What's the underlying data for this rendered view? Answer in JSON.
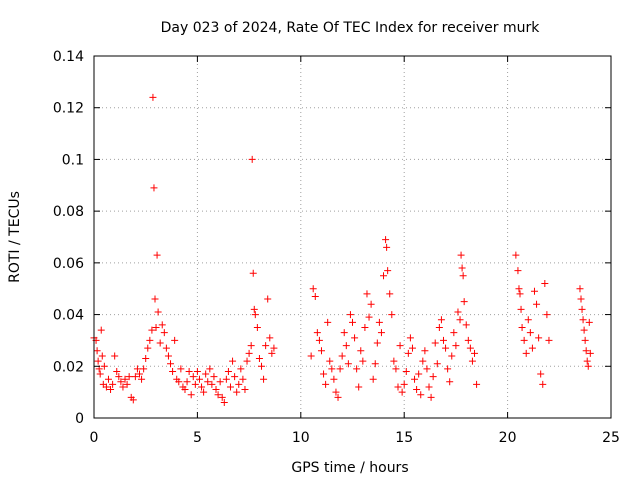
{
  "chart_data": {
    "type": "scatter",
    "title": "Day 023 of 2024, Rate Of TEC Index for receiver murk",
    "xlabel": "GPS time / hours",
    "ylabel": "ROTI / TECUs",
    "xlim": [
      0,
      25
    ],
    "ylim": [
      0,
      0.14
    ],
    "x_ticks": [
      0,
      5,
      10,
      15,
      20,
      25
    ],
    "y_ticks": [
      0,
      0.02,
      0.04,
      0.06,
      0.08,
      0.1,
      0.12,
      0.14
    ],
    "x_tick_labels": [
      "0",
      "5",
      "10",
      "15",
      "20",
      "25"
    ],
    "y_tick_labels": [
      "0",
      "0.02",
      "0.04",
      "0.06",
      "0.08",
      "0.1",
      "0.12",
      "0.14"
    ],
    "grid": true,
    "marker": "+",
    "color": "#ff0000",
    "points": [
      [
        0.0,
        0.031
      ],
      [
        0.1,
        0.03
      ],
      [
        0.15,
        0.026
      ],
      [
        0.2,
        0.022
      ],
      [
        0.25,
        0.019
      ],
      [
        0.3,
        0.017
      ],
      [
        0.35,
        0.034
      ],
      [
        0.4,
        0.024
      ],
      [
        0.45,
        0.013
      ],
      [
        0.5,
        0.02
      ],
      [
        0.6,
        0.012
      ],
      [
        0.7,
        0.015
      ],
      [
        0.8,
        0.011
      ],
      [
        0.9,
        0.013
      ],
      [
        1.0,
        0.024
      ],
      [
        1.1,
        0.018
      ],
      [
        1.2,
        0.016
      ],
      [
        1.3,
        0.014
      ],
      [
        1.4,
        0.012
      ],
      [
        1.5,
        0.015
      ],
      [
        1.6,
        0.013
      ],
      [
        1.7,
        0.016
      ],
      [
        1.8,
        0.008
      ],
      [
        1.9,
        0.007
      ],
      [
        2.0,
        0.016
      ],
      [
        2.1,
        0.019
      ],
      [
        2.2,
        0.017
      ],
      [
        2.3,
        0.015
      ],
      [
        2.4,
        0.019
      ],
      [
        2.5,
        0.023
      ],
      [
        2.6,
        0.027
      ],
      [
        2.7,
        0.03
      ],
      [
        2.8,
        0.034
      ],
      [
        2.85,
        0.124
      ],
      [
        2.9,
        0.089
      ],
      [
        2.95,
        0.046
      ],
      [
        3.0,
        0.035
      ],
      [
        3.05,
        0.063
      ],
      [
        3.1,
        0.041
      ],
      [
        3.2,
        0.029
      ],
      [
        3.3,
        0.036
      ],
      [
        3.4,
        0.033
      ],
      [
        3.5,
        0.027
      ],
      [
        3.6,
        0.024
      ],
      [
        3.7,
        0.021
      ],
      [
        3.8,
        0.018
      ],
      [
        3.9,
        0.03
      ],
      [
        4.0,
        0.015
      ],
      [
        4.1,
        0.014
      ],
      [
        4.2,
        0.019
      ],
      [
        4.3,
        0.012
      ],
      [
        4.4,
        0.011
      ],
      [
        4.5,
        0.014
      ],
      [
        4.6,
        0.018
      ],
      [
        4.7,
        0.009
      ],
      [
        4.8,
        0.016
      ],
      [
        4.9,
        0.013
      ],
      [
        5.0,
        0.018
      ],
      [
        5.1,
        0.015
      ],
      [
        5.2,
        0.012
      ],
      [
        5.3,
        0.01
      ],
      [
        5.4,
        0.017
      ],
      [
        5.5,
        0.014
      ],
      [
        5.6,
        0.019
      ],
      [
        5.7,
        0.013
      ],
      [
        5.8,
        0.016
      ],
      [
        5.9,
        0.011
      ],
      [
        6.0,
        0.009
      ],
      [
        6.1,
        0.014
      ],
      [
        6.2,
        0.008
      ],
      [
        6.3,
        0.006
      ],
      [
        6.4,
        0.015
      ],
      [
        6.5,
        0.018
      ],
      [
        6.6,
        0.012
      ],
      [
        6.7,
        0.022
      ],
      [
        6.8,
        0.016
      ],
      [
        6.9,
        0.01
      ],
      [
        7.0,
        0.013
      ],
      [
        7.1,
        0.019
      ],
      [
        7.2,
        0.015
      ],
      [
        7.3,
        0.011
      ],
      [
        7.4,
        0.022
      ],
      [
        7.5,
        0.025
      ],
      [
        7.6,
        0.028
      ],
      [
        7.65,
        0.1
      ],
      [
        7.7,
        0.056
      ],
      [
        7.75,
        0.042
      ],
      [
        7.8,
        0.04
      ],
      [
        7.9,
        0.035
      ],
      [
        8.0,
        0.023
      ],
      [
        8.1,
        0.02
      ],
      [
        8.2,
        0.015
      ],
      [
        8.3,
        0.028
      ],
      [
        8.4,
        0.046
      ],
      [
        8.5,
        0.031
      ],
      [
        8.6,
        0.025
      ],
      [
        8.7,
        0.027
      ],
      [
        10.5,
        0.024
      ],
      [
        10.6,
        0.05
      ],
      [
        10.7,
        0.047
      ],
      [
        10.8,
        0.033
      ],
      [
        10.9,
        0.03
      ],
      [
        11.0,
        0.026
      ],
      [
        11.1,
        0.017
      ],
      [
        11.2,
        0.013
      ],
      [
        11.3,
        0.037
      ],
      [
        11.4,
        0.022
      ],
      [
        11.5,
        0.019
      ],
      [
        11.6,
        0.015
      ],
      [
        11.7,
        0.01
      ],
      [
        11.8,
        0.008
      ],
      [
        11.9,
        0.019
      ],
      [
        12.0,
        0.024
      ],
      [
        12.1,
        0.033
      ],
      [
        12.2,
        0.028
      ],
      [
        12.3,
        0.021
      ],
      [
        12.4,
        0.04
      ],
      [
        12.5,
        0.037
      ],
      [
        12.6,
        0.031
      ],
      [
        12.7,
        0.019
      ],
      [
        12.8,
        0.012
      ],
      [
        12.9,
        0.026
      ],
      [
        13.0,
        0.022
      ],
      [
        13.1,
        0.035
      ],
      [
        13.2,
        0.048
      ],
      [
        13.3,
        0.039
      ],
      [
        13.4,
        0.044
      ],
      [
        13.5,
        0.015
      ],
      [
        13.6,
        0.021
      ],
      [
        13.7,
        0.029
      ],
      [
        13.8,
        0.037
      ],
      [
        13.9,
        0.033
      ],
      [
        14.0,
        0.055
      ],
      [
        14.1,
        0.069
      ],
      [
        14.15,
        0.066
      ],
      [
        14.2,
        0.057
      ],
      [
        14.3,
        0.048
      ],
      [
        14.4,
        0.04
      ],
      [
        14.5,
        0.022
      ],
      [
        14.6,
        0.019
      ],
      [
        14.7,
        0.012
      ],
      [
        14.8,
        0.028
      ],
      [
        14.9,
        0.01
      ],
      [
        15.0,
        0.013
      ],
      [
        15.1,
        0.018
      ],
      [
        15.2,
        0.025
      ],
      [
        15.3,
        0.031
      ],
      [
        15.4,
        0.027
      ],
      [
        15.5,
        0.015
      ],
      [
        15.6,
        0.011
      ],
      [
        15.7,
        0.017
      ],
      [
        15.8,
        0.009
      ],
      [
        15.9,
        0.022
      ],
      [
        16.0,
        0.026
      ],
      [
        16.1,
        0.019
      ],
      [
        16.2,
        0.012
      ],
      [
        16.3,
        0.008
      ],
      [
        16.4,
        0.016
      ],
      [
        16.5,
        0.029
      ],
      [
        16.6,
        0.021
      ],
      [
        16.7,
        0.035
      ],
      [
        16.8,
        0.038
      ],
      [
        16.9,
        0.03
      ],
      [
        17.0,
        0.027
      ],
      [
        17.1,
        0.019
      ],
      [
        17.2,
        0.014
      ],
      [
        17.3,
        0.024
      ],
      [
        17.4,
        0.033
      ],
      [
        17.5,
        0.028
      ],
      [
        17.6,
        0.041
      ],
      [
        17.7,
        0.038
      ],
      [
        17.75,
        0.063
      ],
      [
        17.8,
        0.058
      ],
      [
        17.85,
        0.055
      ],
      [
        17.9,
        0.045
      ],
      [
        18.0,
        0.036
      ],
      [
        18.1,
        0.03
      ],
      [
        18.2,
        0.027
      ],
      [
        18.3,
        0.022
      ],
      [
        18.4,
        0.025
      ],
      [
        18.5,
        0.013
      ],
      [
        20.4,
        0.063
      ],
      [
        20.5,
        0.057
      ],
      [
        20.55,
        0.05
      ],
      [
        20.6,
        0.048
      ],
      [
        20.65,
        0.042
      ],
      [
        20.7,
        0.035
      ],
      [
        20.8,
        0.03
      ],
      [
        20.9,
        0.025
      ],
      [
        21.0,
        0.038
      ],
      [
        21.1,
        0.033
      ],
      [
        21.2,
        0.027
      ],
      [
        21.3,
        0.049
      ],
      [
        21.4,
        0.044
      ],
      [
        21.5,
        0.031
      ],
      [
        21.6,
        0.017
      ],
      [
        21.7,
        0.013
      ],
      [
        21.8,
        0.052
      ],
      [
        21.9,
        0.04
      ],
      [
        22.0,
        0.03
      ],
      [
        23.5,
        0.05
      ],
      [
        23.55,
        0.046
      ],
      [
        23.6,
        0.042
      ],
      [
        23.65,
        0.038
      ],
      [
        23.7,
        0.034
      ],
      [
        23.75,
        0.03
      ],
      [
        23.8,
        0.026
      ],
      [
        23.85,
        0.022
      ],
      [
        23.9,
        0.02
      ],
      [
        23.95,
        0.037
      ],
      [
        24.0,
        0.025
      ]
    ]
  }
}
